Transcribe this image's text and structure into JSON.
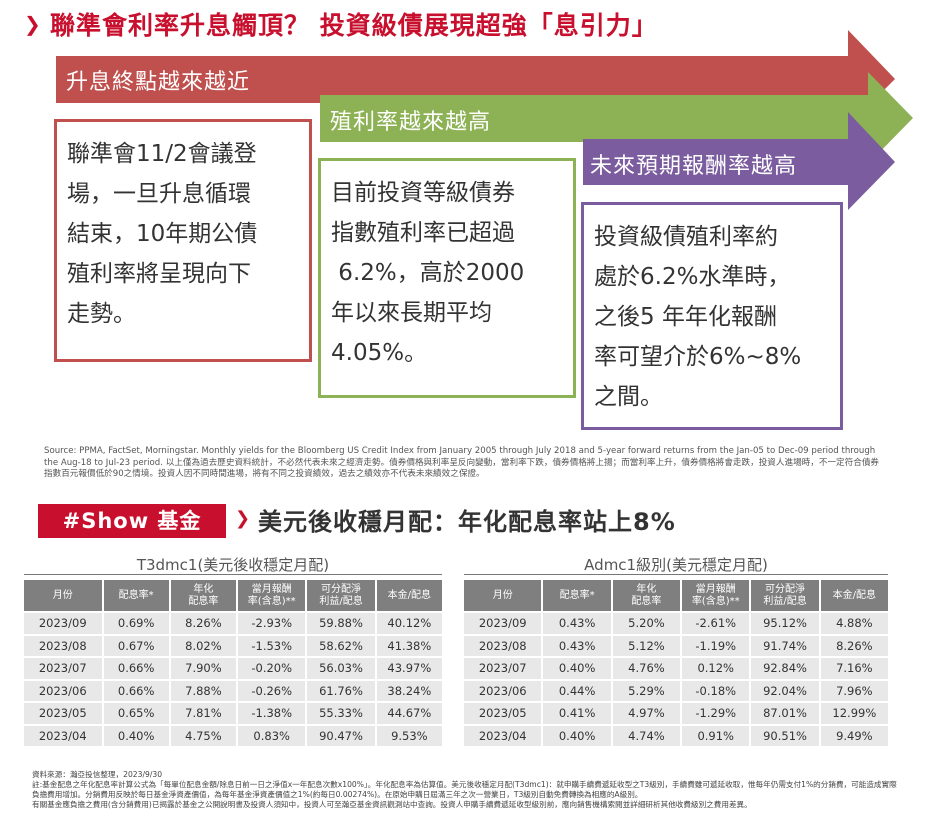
{
  "headline": "聯準會利率升息觸頂？ 投資級債展現超強「息引力」",
  "colors": {
    "red": "#c0504d",
    "green": "#8db255",
    "purple": "#7b5c9e",
    "brand": "#c8102e"
  },
  "panels": [
    {
      "title": "升息終點越來越近",
      "lines": [
        "聯準會11/2會議登",
        "場，一旦升息循環",
        "結束，10年期公債",
        "殖利率將呈現向下",
        "走勢。"
      ]
    },
    {
      "title": "殖利率越來越高",
      "lines": [
        "目前投資等級債券",
        "指數殖利率已超過",
        " 6.2%，高於2000",
        "年以來長期平均",
        "4.05%。"
      ]
    },
    {
      "title": "未來預期報酬率越高",
      "lines": [
        "投資級債殖利率約",
        "處於6.2%水準時，",
        "之後5 年年化報酬",
        "率可望介於6%~8%",
        "之間。"
      ]
    }
  ],
  "source": "Source: PPMA, FactSet, Morningstar. Monthly yields for the Bloomberg US Credit Index from January 2005 through July 2018 and 5-year forward returns from the Jan-05 to Dec-09 period through the Aug-18 to Jul-23 period. 以上僅為過去歷史資料統計，不必然代表未來之經濟走勢。債券價格與利率呈反向變動，當利率下跌，債券價格將上揚；而當利率上升，債券價格將會走跌，投資人進場時，不一定符合債券指數百元報價低於90之情境。投資人因不同時間進場，將有不同之投資績效，過去之績效亦不代表未來績效之保證。",
  "show": {
    "tag": "#Show 基金",
    "title": "美元後收穩月配：年化配息率站上8%"
  },
  "tables": [
    {
      "title": "T3dmc1(美元後收穩定月配)",
      "headers": [
        "月份",
        "配息率*",
        "年化\n配息率",
        "當月報酬\n率(含息)**",
        "可分配淨\n利益/配息",
        "本金/配息"
      ],
      "rows": [
        [
          "2023/09",
          "0.69%",
          "8.26%",
          "-2.93%",
          "59.88%",
          "40.12%"
        ],
        [
          "2023/08",
          "0.67%",
          "8.02%",
          "-1.53%",
          "58.62%",
          "41.38%"
        ],
        [
          "2023/07",
          "0.66%",
          "7.90%",
          "-0.20%",
          "56.03%",
          "43.97%"
        ],
        [
          "2023/06",
          "0.66%",
          "7.88%",
          "-0.26%",
          "61.76%",
          "38.24%"
        ],
        [
          "2023/05",
          "0.65%",
          "7.81%",
          "-1.38%",
          "55.33%",
          "44.67%"
        ],
        [
          "2023/04",
          "0.40%",
          "4.75%",
          "0.83%",
          "90.47%",
          "9.53%"
        ]
      ]
    },
    {
      "title": "Admc1級別(美元穩定月配)",
      "headers": [
        "月份",
        "配息率*",
        "年化\n配息率",
        "當月報酬\n率(含息)**",
        "可分配淨\n利益/配息",
        "本金/配息"
      ],
      "rows": [
        [
          "2023/09",
          "0.43%",
          "5.20%",
          "-2.61%",
          "95.12%",
          "4.88%"
        ],
        [
          "2023/08",
          "0.43%",
          "5.12%",
          "-1.19%",
          "91.74%",
          "8.26%"
        ],
        [
          "2023/07",
          "0.40%",
          "4.76%",
          "0.12%",
          "92.84%",
          "7.16%"
        ],
        [
          "2023/06",
          "0.44%",
          "5.29%",
          "-0.18%",
          "92.04%",
          "7.96%"
        ],
        [
          "2023/05",
          "0.41%",
          "4.97%",
          "-1.29%",
          "87.01%",
          "12.99%"
        ],
        [
          "2023/04",
          "0.40%",
          "4.74%",
          "0.91%",
          "90.51%",
          "9.49%"
        ]
      ]
    }
  ],
  "footnote": [
    "資料來源：瀚亞投信整理，2023/9/30",
    "註:基金配息之年化配息率計算公式為「每單位配息金額/除息日前一日之淨值x一年配息次數x100%」。年化配息率為估算值。美元後收穩定月配(T3dmc1)：就申購手續費遞延收型之T3級別，手續費雖可遞延收取，惟每年仍需支付1%的分銷費，可能造成實際負擔費用增加。分銷費用反映於每日基金淨資產價值，為每年基金淨資產價值之1%(約每日0.00274%)。在原始申購日屆滿三年之次一營業日，T3級別自動免費轉換為相應的A級別。",
    "有關基金應負擔之費用(含分銷費用)已揭露於基金之公開說明書及投資人須知中，投資人可至瀚亞基金資訊觀測站中查詢。投資人申購手續費遞延收型級別前，應向銷售機構索閱並詳細研析其他收費級別之費用差異。"
  ]
}
